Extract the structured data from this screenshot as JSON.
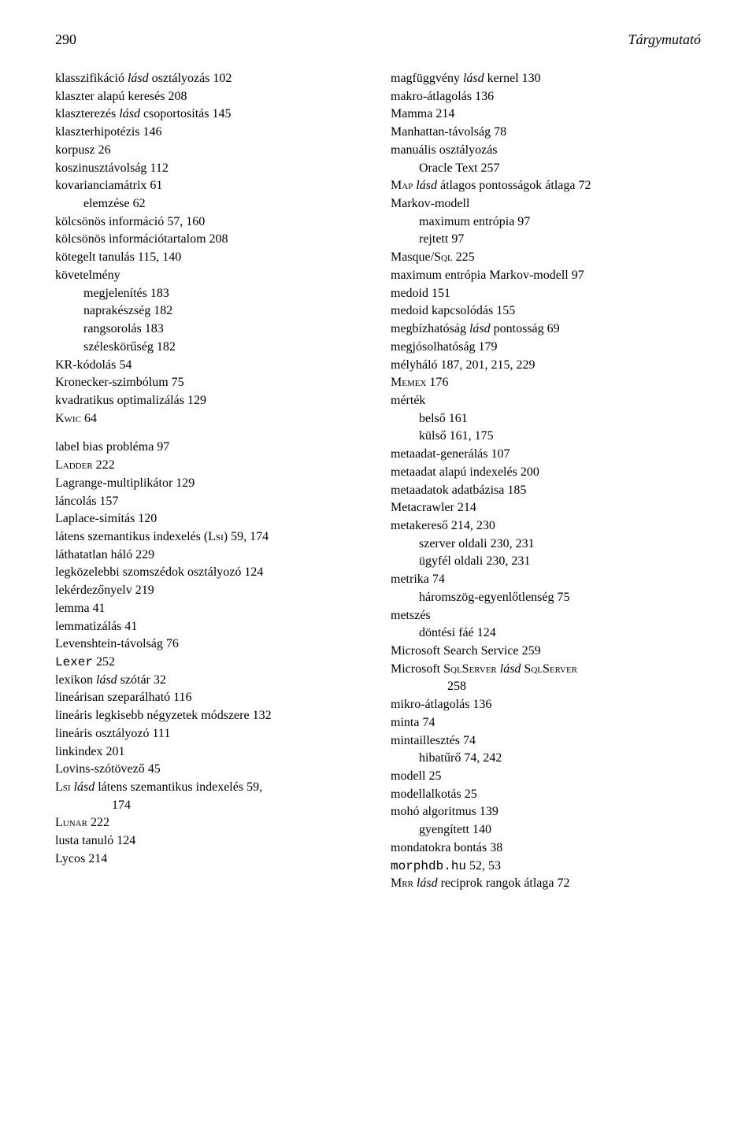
{
  "header": {
    "pageNumber": "290",
    "title": "Tárgymutató"
  },
  "left": {
    "e": [
      {
        "t": [
          {
            "x": "klasszifikáció "
          },
          {
            "x": "lásd",
            "it": true
          },
          {
            "x": " osztályozás  102"
          }
        ]
      },
      {
        "t": [
          {
            "x": "klaszter alapú keresés  208"
          }
        ]
      },
      {
        "t": [
          {
            "x": "klaszterezés "
          },
          {
            "x": "lásd",
            "it": true
          },
          {
            "x": " csoportosítás  145"
          }
        ]
      },
      {
        "t": [
          {
            "x": "klaszterhipotézis  146"
          }
        ]
      },
      {
        "t": [
          {
            "x": "korpusz  26"
          }
        ]
      },
      {
        "t": [
          {
            "x": "koszinusztávolság  112"
          }
        ]
      },
      {
        "t": [
          {
            "x": "kovarianciamátrix  61"
          }
        ]
      },
      {
        "t": [
          {
            "x": "elemzése  62"
          }
        ],
        "i": 1
      },
      {
        "t": [
          {
            "x": "kölcsönös információ  57, 160"
          }
        ]
      },
      {
        "t": [
          {
            "x": "kölcsönös információtartalom  208"
          }
        ]
      },
      {
        "t": [
          {
            "x": "kötegelt tanulás  115, 140"
          }
        ]
      },
      {
        "t": [
          {
            "x": "követelmény"
          }
        ]
      },
      {
        "t": [
          {
            "x": "megjelenítés  183"
          }
        ],
        "i": 1
      },
      {
        "t": [
          {
            "x": "naprakészség  182"
          }
        ],
        "i": 1
      },
      {
        "t": [
          {
            "x": "rangsorolás  183"
          }
        ],
        "i": 1
      },
      {
        "t": [
          {
            "x": "széleskörűség  182"
          }
        ],
        "i": 1
      },
      {
        "t": [
          {
            "x": "KR-kódolás  54"
          }
        ]
      },
      {
        "t": [
          {
            "x": "Kronecker-szimbólum  75"
          }
        ]
      },
      {
        "t": [
          {
            "x": "kvadratikus optimalizálás  129"
          }
        ]
      },
      {
        "t": [
          {
            "x": "Kwic",
            "sc": true
          },
          {
            "x": "  64"
          }
        ]
      },
      {
        "t": [
          {
            "x": "label bias probléma  97"
          }
        ],
        "gap": true
      },
      {
        "t": [
          {
            "x": "Ladder",
            "sc": true
          },
          {
            "x": "  222"
          }
        ]
      },
      {
        "t": [
          {
            "x": "Lagrange-multiplikátor  129"
          }
        ]
      },
      {
        "t": [
          {
            "x": "láncolás  157"
          }
        ]
      },
      {
        "t": [
          {
            "x": "Laplace-simítás  120"
          }
        ]
      },
      {
        "t": [
          {
            "x": "látens szemantikus indexelés ("
          },
          {
            "x": "Lsi",
            "sc": true
          },
          {
            "x": ")  59, 174"
          }
        ]
      },
      {
        "t": [
          {
            "x": "láthatatlan háló  229"
          }
        ]
      },
      {
        "t": [
          {
            "x": "legközelebbi szomszédok osztályozó  124"
          }
        ]
      },
      {
        "t": [
          {
            "x": "lekérdezőnyelv  219"
          }
        ]
      },
      {
        "t": [
          {
            "x": "lemma  41"
          }
        ]
      },
      {
        "t": [
          {
            "x": "lemmatizálás  41"
          }
        ]
      },
      {
        "t": [
          {
            "x": "Levenshtein-távolság  76"
          }
        ]
      },
      {
        "t": [
          {
            "x": "Lexer",
            "tt": true
          },
          {
            "x": "  252"
          }
        ]
      },
      {
        "t": [
          {
            "x": "lexikon "
          },
          {
            "x": "lásd",
            "it": true
          },
          {
            "x": " szótár  32"
          }
        ]
      },
      {
        "t": [
          {
            "x": "lineárisan szeparálható  116"
          }
        ]
      },
      {
        "t": [
          {
            "x": "lineáris legkisebb négyzetek módszere  132"
          }
        ]
      },
      {
        "t": [
          {
            "x": "lineáris osztályozó  111"
          }
        ]
      },
      {
        "t": [
          {
            "x": "linkindex  201"
          }
        ]
      },
      {
        "t": [
          {
            "x": "Lovins-szótövező  45"
          }
        ]
      },
      {
        "t": [
          {
            "x": "Lsi",
            "sc": true
          },
          {
            "x": " "
          },
          {
            "x": "lásd",
            "it": true
          },
          {
            "x": " látens szemantikus indexelés  59,"
          }
        ]
      },
      {
        "t": [
          {
            "x": "174"
          }
        ],
        "cont": true
      },
      {
        "t": [
          {
            "x": "Lunar",
            "sc": true
          },
          {
            "x": "  222"
          }
        ]
      },
      {
        "t": [
          {
            "x": "lusta tanuló  124"
          }
        ]
      },
      {
        "t": [
          {
            "x": "Lycos  214"
          }
        ]
      }
    ]
  },
  "right": {
    "e": [
      {
        "t": [
          {
            "x": "magfüggvény "
          },
          {
            "x": "lásd",
            "it": true
          },
          {
            "x": " kernel  130"
          }
        ]
      },
      {
        "t": [
          {
            "x": "makro-átlagolás  136"
          }
        ]
      },
      {
        "t": [
          {
            "x": "Mamma  214"
          }
        ]
      },
      {
        "t": [
          {
            "x": "Manhattan-távolság  78"
          }
        ]
      },
      {
        "t": [
          {
            "x": "manuális osztályozás"
          }
        ]
      },
      {
        "t": [
          {
            "x": "Oracle Text  257"
          }
        ],
        "i": 1
      },
      {
        "t": [
          {
            "x": "Map",
            "sc": true
          },
          {
            "x": " "
          },
          {
            "x": "lásd",
            "it": true
          },
          {
            "x": " átlagos pontosságok átlaga  72"
          }
        ]
      },
      {
        "t": [
          {
            "x": "Markov-modell"
          }
        ]
      },
      {
        "t": [
          {
            "x": "maximum entrópia  97"
          }
        ],
        "i": 1
      },
      {
        "t": [
          {
            "x": "rejtett  97"
          }
        ],
        "i": 1
      },
      {
        "t": [
          {
            "x": "Masque/"
          },
          {
            "x": "Sql",
            "sc": true
          },
          {
            "x": "  225"
          }
        ]
      },
      {
        "t": [
          {
            "x": "maximum entrópia Markov-modell  97"
          }
        ]
      },
      {
        "t": [
          {
            "x": "medoid  151"
          }
        ]
      },
      {
        "t": [
          {
            "x": "medoid kapcsolódás  155"
          }
        ]
      },
      {
        "t": [
          {
            "x": "megbízhatóság "
          },
          {
            "x": "lásd",
            "it": true
          },
          {
            "x": " pontosság  69"
          }
        ]
      },
      {
        "t": [
          {
            "x": "megjósolhatóság  179"
          }
        ]
      },
      {
        "t": [
          {
            "x": "mélyháló  187, 201, 215, 229"
          }
        ]
      },
      {
        "t": [
          {
            "x": "Memex",
            "sc": true
          },
          {
            "x": "  176"
          }
        ]
      },
      {
        "t": [
          {
            "x": "mérték"
          }
        ]
      },
      {
        "t": [
          {
            "x": "belső  161"
          }
        ],
        "i": 1
      },
      {
        "t": [
          {
            "x": "külső  161, 175"
          }
        ],
        "i": 1
      },
      {
        "t": [
          {
            "x": "metaadat-generálás  107"
          }
        ]
      },
      {
        "t": [
          {
            "x": "metaadat alapú indexelés  200"
          }
        ]
      },
      {
        "t": [
          {
            "x": "metaadatok adatbázisa  185"
          }
        ]
      },
      {
        "t": [
          {
            "x": "Metacrawler  214"
          }
        ]
      },
      {
        "t": [
          {
            "x": "metakereső  214, 230"
          }
        ]
      },
      {
        "t": [
          {
            "x": "szerver oldali  230, 231"
          }
        ],
        "i": 1
      },
      {
        "t": [
          {
            "x": "ügyfél oldali  230, 231"
          }
        ],
        "i": 1
      },
      {
        "t": [
          {
            "x": "metrika  74"
          }
        ]
      },
      {
        "t": [
          {
            "x": "háromszög-egyenlőtlenség  75"
          }
        ],
        "i": 1
      },
      {
        "t": [
          {
            "x": "metszés"
          }
        ]
      },
      {
        "t": [
          {
            "x": "döntési fáé  124"
          }
        ],
        "i": 1
      },
      {
        "t": [
          {
            "x": "Microsoft Search Service  259"
          }
        ]
      },
      {
        "t": [
          {
            "x": "Microsoft "
          },
          {
            "x": "SqlServer",
            "sc": true
          },
          {
            "x": " "
          },
          {
            "x": "lásd",
            "it": true
          },
          {
            "x": " "
          },
          {
            "x": "SqlServer",
            "sc": true
          }
        ]
      },
      {
        "t": [
          {
            "x": "258"
          }
        ],
        "cont": true
      },
      {
        "t": [
          {
            "x": "mikro-átlagolás  136"
          }
        ]
      },
      {
        "t": [
          {
            "x": "minta  74"
          }
        ]
      },
      {
        "t": [
          {
            "x": "mintaillesztés  74"
          }
        ]
      },
      {
        "t": [
          {
            "x": "hibatűrő  74, 242"
          }
        ],
        "i": 1
      },
      {
        "t": [
          {
            "x": "modell  25"
          }
        ]
      },
      {
        "t": [
          {
            "x": "modellalkotás  25"
          }
        ]
      },
      {
        "t": [
          {
            "x": "mohó algoritmus  139"
          }
        ]
      },
      {
        "t": [
          {
            "x": "gyengített  140"
          }
        ],
        "i": 1
      },
      {
        "t": [
          {
            "x": "mondatokra bontás  38"
          }
        ]
      },
      {
        "t": [
          {
            "x": "morphdb.hu",
            "tt": true
          },
          {
            "x": "  52, 53"
          }
        ]
      },
      {
        "t": [
          {
            "x": "Mrr",
            "sc": true
          },
          {
            "x": " "
          },
          {
            "x": "lásd",
            "it": true
          },
          {
            "x": " reciprok rangok átlaga  72"
          }
        ]
      }
    ]
  }
}
